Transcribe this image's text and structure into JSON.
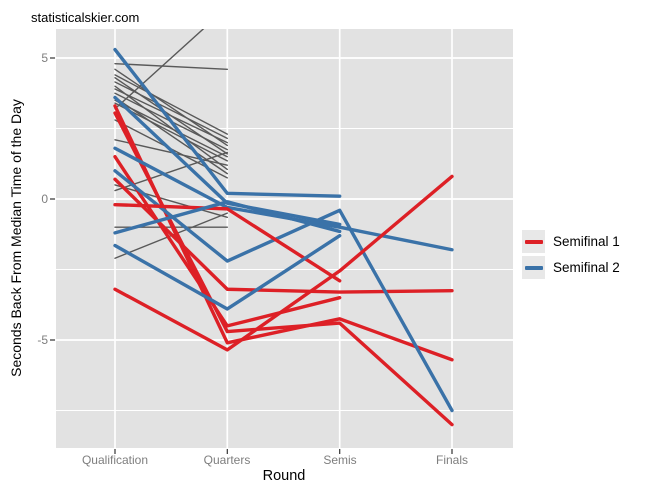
{
  "watermark": "statisticalskier.com",
  "chart_data": {
    "type": "line",
    "title": "",
    "xlabel": "Round",
    "ylabel": "Seconds Back From Median Time of the Day",
    "categories": [
      "Qualification",
      "Quarters",
      "Semis",
      "Finals"
    ],
    "y_axis": {
      "ticks": [
        5,
        0,
        -5
      ],
      "tick_labels": [
        "5",
        "0",
        "-5"
      ],
      "minor_ticks": [
        2.5,
        -2.5,
        -7.5
      ],
      "range": [
        -8.8,
        6.0
      ]
    },
    "grid": {
      "major": true,
      "minor": true,
      "style": "white lines on gray panel"
    },
    "legend": {
      "position": "right",
      "entries": [
        {
          "label": "Semifinal 1",
          "key": "semifinal1"
        },
        {
          "label": "Semifinal 2",
          "key": "semifinal2"
        }
      ]
    },
    "colors": {
      "semifinal1": "#dd2026",
      "semifinal2": "#3a72a8",
      "eliminated": "#595959",
      "panel": "#e2e2e2",
      "grid": "#ffffff",
      "tick_mark": "#333333",
      "tick_label": "#7e7e7e",
      "legend_key_bg": "#e8e8e8"
    },
    "series": [
      {
        "name": "eliminated-1",
        "group": "eliminated",
        "values": [
          4.8,
          4.6,
          null,
          null
        ]
      },
      {
        "name": "eliminated-2",
        "group": "eliminated",
        "values": [
          4.6,
          1.9,
          null,
          null
        ]
      },
      {
        "name": "eliminated-3",
        "group": "eliminated",
        "values": [
          4.4,
          2.3,
          null,
          null
        ]
      },
      {
        "name": "eliminated-4",
        "group": "eliminated",
        "values": [
          4.3,
          1.6,
          null,
          null
        ]
      },
      {
        "name": "eliminated-5",
        "group": "eliminated",
        "values": [
          4.15,
          2.15,
          null,
          null
        ]
      },
      {
        "name": "eliminated-6",
        "group": "eliminated",
        "values": [
          4.0,
          1.05,
          null,
          null
        ]
      },
      {
        "name": "eliminated-7",
        "group": "eliminated",
        "values": [
          3.9,
          2.0,
          null,
          null
        ]
      },
      {
        "name": "eliminated-8",
        "group": "eliminated",
        "values": [
          3.75,
          1.75,
          null,
          null
        ]
      },
      {
        "name": "eliminated-9",
        "group": "eliminated",
        "values": [
          3.6,
          0.9,
          null,
          null
        ]
      },
      {
        "name": "eliminated-10",
        "group": "eliminated",
        "values": [
          3.5,
          1.5,
          null,
          null
        ]
      },
      {
        "name": "eliminated-11",
        "group": "eliminated",
        "values": [
          3.4,
          1.35,
          null,
          null
        ]
      },
      {
        "name": "eliminated-12",
        "group": "eliminated",
        "values": [
          3.2,
          6.8,
          null,
          null
        ]
      },
      {
        "name": "eliminated-13",
        "group": "eliminated",
        "values": [
          2.8,
          0.75,
          null,
          null
        ]
      },
      {
        "name": "eliminated-14",
        "group": "eliminated",
        "values": [
          2.1,
          1.2,
          null,
          null
        ]
      },
      {
        "name": "eliminated-15",
        "group": "eliminated",
        "values": [
          0.5,
          -0.65,
          null,
          null
        ]
      },
      {
        "name": "eliminated-16",
        "group": "eliminated",
        "values": [
          0.3,
          1.65,
          null,
          null
        ]
      },
      {
        "name": "eliminated-17",
        "group": "eliminated",
        "values": [
          -1.0,
          -1.0,
          null,
          null
        ]
      },
      {
        "name": "eliminated-18",
        "group": "eliminated",
        "values": [
          -2.1,
          -0.5,
          null,
          null
        ]
      },
      {
        "name": "sf1-1",
        "group": "semifinal1",
        "values": [
          3.3,
          -5.1,
          -4.25,
          -5.7
        ]
      },
      {
        "name": "sf2-1",
        "group": "semifinal2",
        "values": [
          5.3,
          0.2,
          0.1,
          null
        ]
      },
      {
        "name": "sf1-2",
        "group": "semifinal1",
        "values": [
          3.05,
          -4.7,
          -4.4,
          -8.0
        ]
      },
      {
        "name": "sf2-2",
        "group": "semifinal2",
        "values": [
          3.6,
          -0.15,
          -0.9,
          null
        ]
      },
      {
        "name": "sf1-3",
        "group": "semifinal1",
        "values": [
          1.5,
          -4.5,
          -3.5,
          null
        ]
      },
      {
        "name": "sf2-3",
        "group": "semifinal2",
        "values": [
          1.8,
          -0.3,
          -1.0,
          -1.8
        ]
      },
      {
        "name": "sf1-4",
        "group": "semifinal1",
        "values": [
          0.7,
          -3.2,
          -3.3,
          -3.25
        ]
      },
      {
        "name": "sf2-4",
        "group": "semifinal2",
        "values": [
          1.0,
          -2.2,
          -0.4,
          -7.5
        ]
      },
      {
        "name": "sf1-5",
        "group": "semifinal1",
        "values": [
          -0.2,
          -0.35,
          -2.9,
          null
        ]
      },
      {
        "name": "sf2-5",
        "group": "semifinal2",
        "values": [
          -1.2,
          -0.1,
          -1.15,
          null
        ]
      },
      {
        "name": "sf1-6",
        "group": "semifinal1",
        "values": [
          -3.2,
          -5.35,
          -2.55,
          0.8
        ]
      },
      {
        "name": "sf2-6",
        "group": "semifinal2",
        "values": [
          -1.65,
          -3.9,
          -1.3,
          null
        ]
      }
    ]
  }
}
